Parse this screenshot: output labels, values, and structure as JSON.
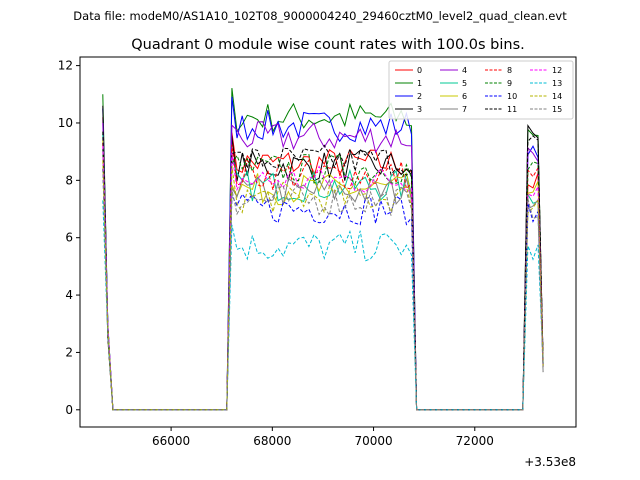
{
  "figure": {
    "suptitle": "Data file: modeM0/AS1A10_102T08_9000004240_29460cztM0_level2_quad_clean.evt"
  },
  "chart_data": {
    "type": "line",
    "title": "Quadrant 0 module wise count rates with 100.0s bins.",
    "xlabel": "",
    "ylabel": "",
    "x_offset_label": "+3.53e8",
    "xlim": [
      64200,
      74000
    ],
    "ylim": [
      -0.6,
      12.3
    ],
    "x_ticks": [
      66000,
      68000,
      70000,
      72000
    ],
    "x_tick_labels": [
      "66000",
      "68000",
      "70000",
      "72000"
    ],
    "y_ticks": [
      0,
      2,
      4,
      6,
      8,
      10,
      12
    ],
    "y_tick_labels": [
      "0",
      "2",
      "4",
      "6",
      "8",
      "10",
      "12"
    ],
    "grid": false,
    "legend_location": "top-right",
    "legend_columns": 4,
    "series": [
      {
        "name": "0",
        "color": "#ff0000",
        "dash": "solid",
        "levels": [
          10.2,
          8.6,
          7.9
        ]
      },
      {
        "name": "1",
        "color": "#008000",
        "dash": "solid",
        "levels": [
          11.0,
          10.2,
          9.7
        ]
      },
      {
        "name": "2",
        "color": "#0000ff",
        "dash": "solid",
        "levels": [
          10.5,
          9.9,
          9.2
        ]
      },
      {
        "name": "3",
        "color": "#000000",
        "dash": "solid",
        "levels": [
          10.6,
          8.5,
          9.6
        ]
      },
      {
        "name": "4",
        "color": "#9400d3",
        "dash": "solid",
        "levels": [
          10.0,
          9.5,
          9.0
        ]
      },
      {
        "name": "5",
        "color": "#00c896",
        "dash": "solid",
        "levels": [
          9.6,
          7.8,
          7.5
        ]
      },
      {
        "name": "6",
        "color": "#c8c800",
        "dash": "solid",
        "levels": [
          9.4,
          7.7,
          7.6
        ]
      },
      {
        "name": "7",
        "color": "#808080",
        "dash": "solid",
        "levels": [
          9.0,
          7.6,
          7.4
        ]
      },
      {
        "name": "8",
        "color": "#ff0000",
        "dash": "dashed",
        "levels": [
          9.3,
          8.2,
          8.2
        ]
      },
      {
        "name": "9",
        "color": "#008000",
        "dash": "dashed",
        "levels": [
          9.1,
          8.4,
          8.4
        ]
      },
      {
        "name": "10",
        "color": "#0000ff",
        "dash": "dashed",
        "levels": [
          8.4,
          7.0,
          6.8
        ]
      },
      {
        "name": "11",
        "color": "#000000",
        "dash": "dashed",
        "levels": [
          9.7,
          8.7,
          9.3
        ]
      },
      {
        "name": "12",
        "color": "#ff00ff",
        "dash": "dashed",
        "levels": [
          9.2,
          8.0,
          7.8
        ]
      },
      {
        "name": "13",
        "color": "#00bcd4",
        "dash": "dashed",
        "levels": [
          7.3,
          5.7,
          5.5
        ]
      },
      {
        "name": "14",
        "color": "#b5b500",
        "dash": "dashed",
        "levels": [
          8.7,
          7.4,
          7.2
        ]
      },
      {
        "name": "15",
        "color": "#808080",
        "dash": "dashed",
        "levels": [
          8.4,
          7.3,
          7.0
        ]
      }
    ],
    "segments": [
      {
        "start": 64650,
        "end": 64850,
        "points": 3
      },
      {
        "start": 67100,
        "end": 70750,
        "points": 37
      },
      {
        "start": 72950,
        "end": 73350,
        "points": 5
      }
    ],
    "gaps_value": 0
  }
}
